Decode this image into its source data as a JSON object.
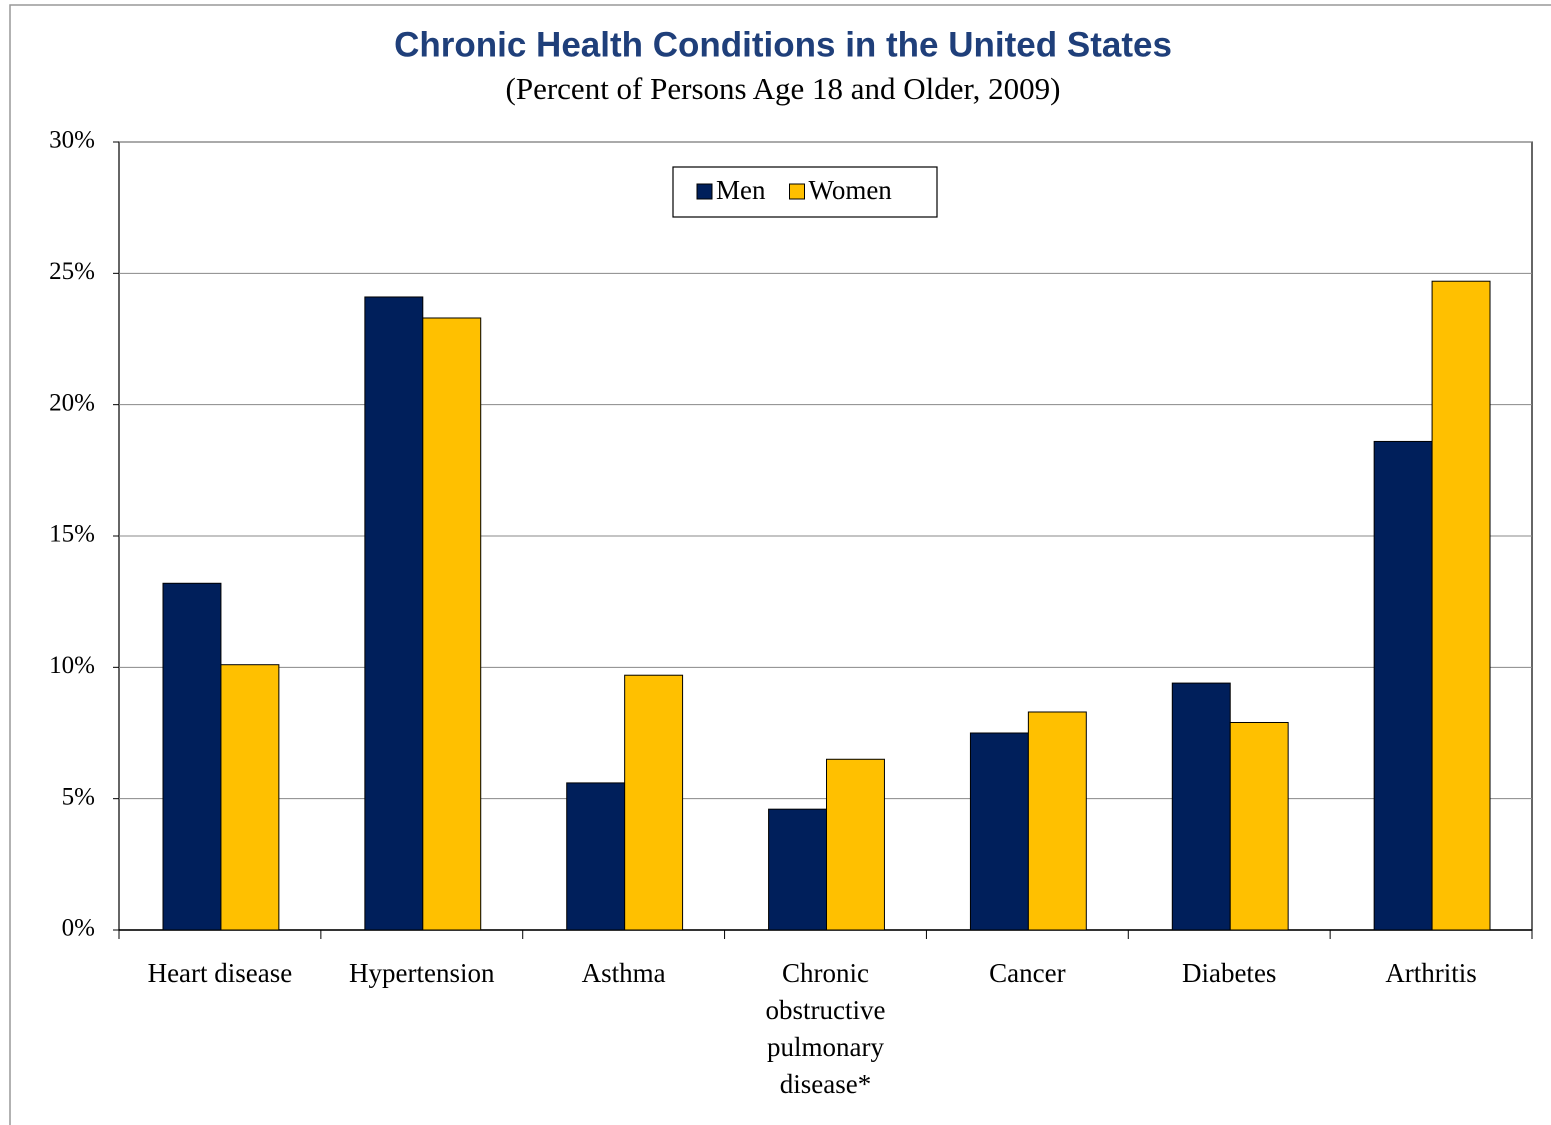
{
  "chart_data": {
    "type": "bar",
    "title": "Chronic Health Conditions in the United States",
    "subtitle": "(Percent of Persons Age 18 and Older, 2009)",
    "categories": [
      "Heart disease",
      "Hypertension",
      "Asthma",
      "Chronic obstructive pulmonary disease*",
      "Cancer",
      "Diabetes",
      "Arthritis"
    ],
    "series": [
      {
        "name": "Men",
        "color": "#001f5b",
        "values": [
          13.2,
          24.1,
          5.6,
          4.6,
          7.5,
          9.4,
          18.6
        ]
      },
      {
        "name": "Women",
        "color": "#ffc000",
        "values": [
          10.1,
          23.3,
          9.7,
          6.5,
          8.3,
          7.9,
          24.7
        ]
      }
    ],
    "ylim": [
      0,
      30
    ],
    "yticks": [
      {
        "value": 0,
        "label": "0%"
      },
      {
        "value": 5,
        "label": "5%"
      },
      {
        "value": 10,
        "label": "10%"
      },
      {
        "value": 15,
        "label": "15%"
      },
      {
        "value": 20,
        "label": "20%"
      },
      {
        "value": 25,
        "label": "25%"
      },
      {
        "value": 30,
        "label": "30%"
      }
    ],
    "grid": true,
    "legend": "top"
  }
}
